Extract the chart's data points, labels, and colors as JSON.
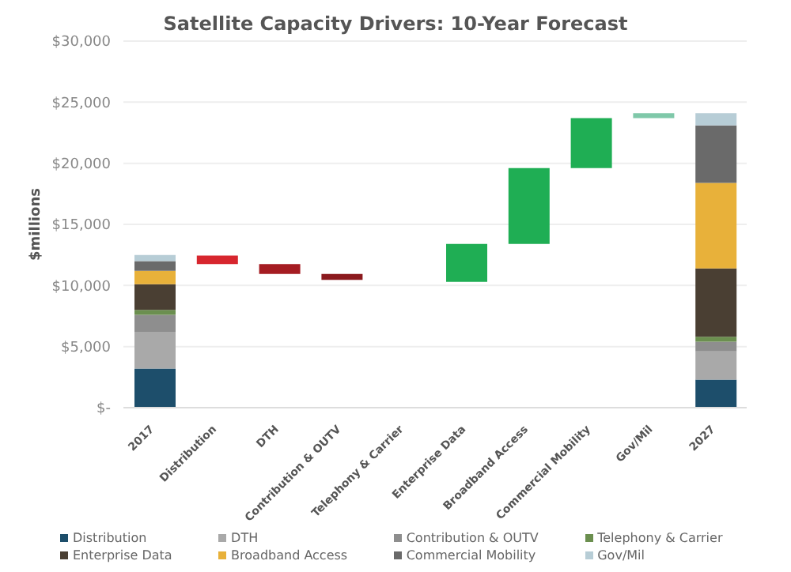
{
  "chart_data": {
    "type": "bar",
    "title": "Satellite Capacity Drivers: 10-Year Forecast",
    "ylabel": "$millions",
    "stacked": true,
    "categories": [
      "2017",
      "Distribution",
      "DTH",
      "Contribution & OUTV",
      "Telephony & Carrier",
      "Enterprise Data",
      "Broadband Access",
      "Commercial Mobility",
      "Gov/Mil",
      "2027"
    ],
    "series": [
      {
        "name": "Distribution",
        "color": "#1d4e6b",
        "values": [
          3200,
          null,
          null,
          null,
          null,
          null,
          null,
          null,
          null,
          2300
        ]
      },
      {
        "name": "DTH",
        "color": "#a9a9a9",
        "values": [
          3000,
          null,
          null,
          null,
          null,
          null,
          null,
          null,
          null,
          2300
        ]
      },
      {
        "name": "Contribution & OUTV",
        "color": "#8e8e8e",
        "values": [
          1400,
          null,
          null,
          null,
          null,
          null,
          null,
          null,
          null,
          800
        ]
      },
      {
        "name": "Telephony & Carrier",
        "color": "#6b8f4f",
        "values": [
          400,
          null,
          null,
          null,
          null,
          null,
          null,
          null,
          null,
          400
        ]
      },
      {
        "name": "Enterprise Data",
        "color": "#4a3f33",
        "values": [
          2100,
          null,
          null,
          null,
          null,
          null,
          null,
          null,
          null,
          5600
        ]
      },
      {
        "name": "Broadband Access",
        "color": "#e8b13a",
        "values": [
          1100,
          null,
          null,
          null,
          null,
          null,
          null,
          null,
          null,
          7000
        ]
      },
      {
        "name": "Commercial Mobility",
        "color": "#6a6a6a",
        "values": [
          800,
          null,
          null,
          null,
          null,
          null,
          null,
          null,
          null,
          4700
        ]
      },
      {
        "name": "Gov/Mil",
        "color": "#b7cdd6",
        "values": [
          500,
          null,
          null,
          null,
          null,
          null,
          null,
          null,
          null,
          1000
        ]
      },
      {
        "type": "bar",
        "color": "#1fae54",
        "colors": [
          null,
          "#d7262e",
          "#a51c22",
          "#8b1a1e",
          null,
          "#1fae54",
          "#1fae54",
          "#1fae54",
          "#7fc8a9",
          null
        ],
        "base": [
          null,
          12450,
          11750,
          10950,
          null,
          10300,
          13400,
          19600,
          23700,
          null
        ],
        "values": [
          null,
          -700,
          -800,
          -500,
          null,
          3100,
          6200,
          4100,
          400,
          null
        ]
      }
    ],
    "ylim": [
      0,
      30000
    ],
    "yticks": [
      {
        "value": 0,
        "label": "$-"
      },
      {
        "value": 5000,
        "label": "$5,000"
      },
      {
        "value": 10000,
        "label": "$10,000"
      },
      {
        "value": 15000,
        "label": "$15,000"
      },
      {
        "value": 20000,
        "label": "$20,000"
      },
      {
        "value": 25000,
        "label": "$25,000"
      },
      {
        "value": 30000,
        "label": "$30,000"
      }
    ],
    "grid": "y",
    "legend": "bottom"
  }
}
